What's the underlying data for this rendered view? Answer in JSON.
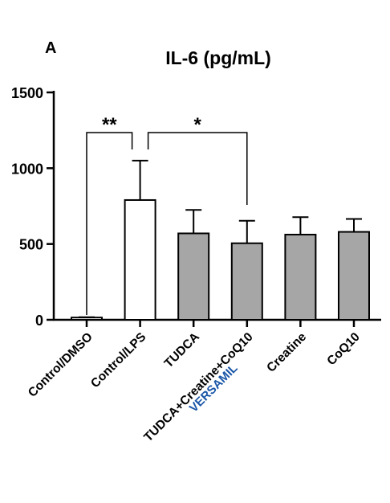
{
  "chart_data": {
    "type": "bar",
    "panel_label": "A",
    "title": "IL-6 (pg/mL)",
    "xlabel": "",
    "ylabel": "",
    "ylim": [
      0,
      1500
    ],
    "y_ticks": [
      0,
      500,
      1000,
      1500
    ],
    "y_tick_labels": [
      "0",
      "500",
      "1000",
      "1500"
    ],
    "categories": [
      "Control/DMSO",
      "Control/LPS",
      "TUDCA",
      "TUDCA+Creatine+CoQ10",
      "Creatine",
      "CoQ10"
    ],
    "category_sublabels": [
      "",
      "",
      "",
      "VERSAMIL",
      "",
      ""
    ],
    "values": [
      15,
      790,
      570,
      505,
      562,
      580
    ],
    "errors": [
      2,
      260,
      155,
      148,
      115,
      85
    ],
    "bar_colors": [
      "#ffffff",
      "#ffffff",
      "#a6a6a6",
      "#a6a6a6",
      "#a6a6a6",
      "#a6a6a6"
    ],
    "sublabel_color": "#1a56a8",
    "significance": [
      {
        "from": 0,
        "to": 1,
        "label": "**"
      },
      {
        "from": 1,
        "to": 3,
        "label": "*"
      }
    ],
    "grid": false,
    "legend": "none"
  }
}
